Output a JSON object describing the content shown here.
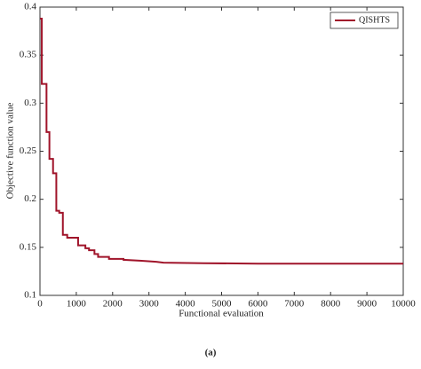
{
  "chart_data": {
    "type": "line",
    "x_label": "Functional evaluation",
    "y_label": "Objective function value",
    "caption": "(a)",
    "legend": "top-right",
    "grid": false,
    "xlim": [
      0,
      10000
    ],
    "xticks": [
      0,
      1000,
      2000,
      3000,
      4000,
      5000,
      6000,
      7000,
      8000,
      9000,
      10000
    ],
    "ylim": [
      0.1,
      0.4
    ],
    "yticks": [
      0.1,
      0.15,
      0.2,
      0.25,
      0.3,
      0.35,
      0.4
    ],
    "series": [
      {
        "name": "QISHTS",
        "color": "#a0142a",
        "x": [
          0,
          50,
          50,
          180,
          180,
          260,
          260,
          360,
          360,
          450,
          450,
          530,
          530,
          630,
          630,
          750,
          750,
          1050,
          1050,
          1250,
          1250,
          1350,
          1350,
          1500,
          1500,
          1600,
          1600,
          1900,
          1900,
          2300,
          2300,
          2800,
          3200,
          3400,
          4500,
          6000,
          10000
        ],
        "values": [
          0.388,
          0.388,
          0.32,
          0.32,
          0.27,
          0.27,
          0.242,
          0.242,
          0.227,
          0.227,
          0.188,
          0.188,
          0.186,
          0.186,
          0.163,
          0.163,
          0.16,
          0.16,
          0.152,
          0.152,
          0.149,
          0.149,
          0.147,
          0.147,
          0.143,
          0.143,
          0.14,
          0.14,
          0.138,
          0.138,
          0.137,
          0.136,
          0.135,
          0.134,
          0.1335,
          0.133,
          0.133
        ]
      }
    ]
  }
}
